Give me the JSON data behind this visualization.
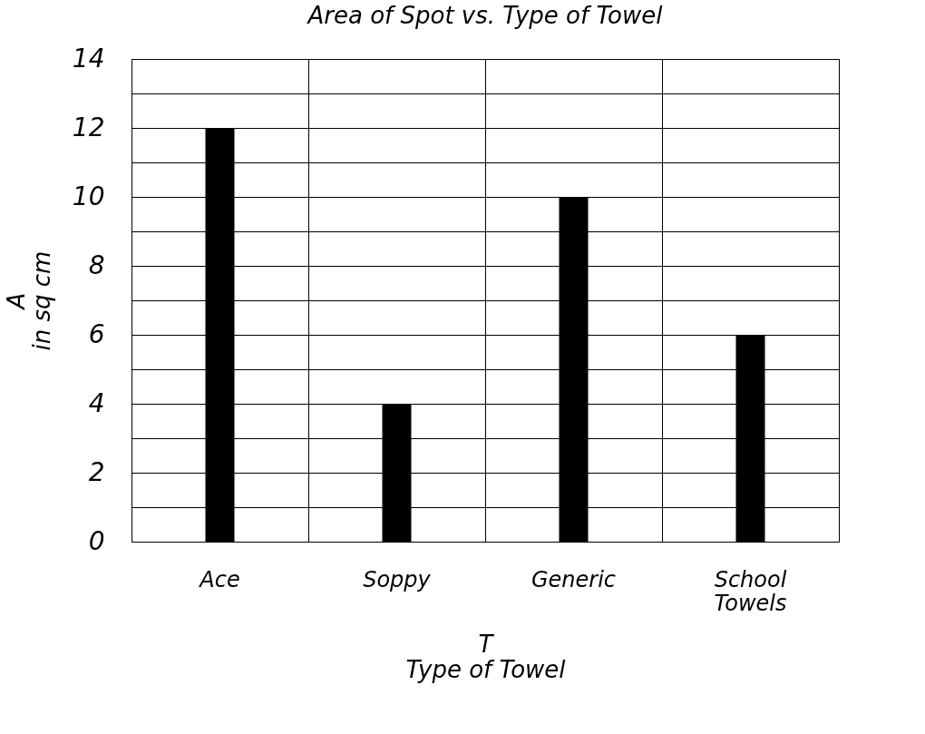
{
  "chart_data": {
    "type": "bar",
    "title": "Area of Spot vs. Type of Towel",
    "xlabel": "T\nType of Towel",
    "ylabel": "A\nin sq cm",
    "categories": [
      "Ace",
      "Soppy",
      "Generic",
      "School Towels"
    ],
    "values": [
      12,
      4,
      10,
      6
    ],
    "color": "#000000",
    "ylim": [
      0,
      14
    ],
    "yticks": [
      0,
      {
        "value": 1,
        "label": null
      },
      2,
      {
        "value": 3,
        "label": null
      },
      4,
      {
        "value": 5,
        "label": null
      },
      6,
      {
        "value": 7,
        "label": null
      },
      8,
      {
        "value": 9,
        "label": null
      },
      10,
      {
        "value": 11,
        "label": null
      },
      12,
      {
        "value": 13,
        "label": null
      },
      14
    ],
    "grid": true
  }
}
